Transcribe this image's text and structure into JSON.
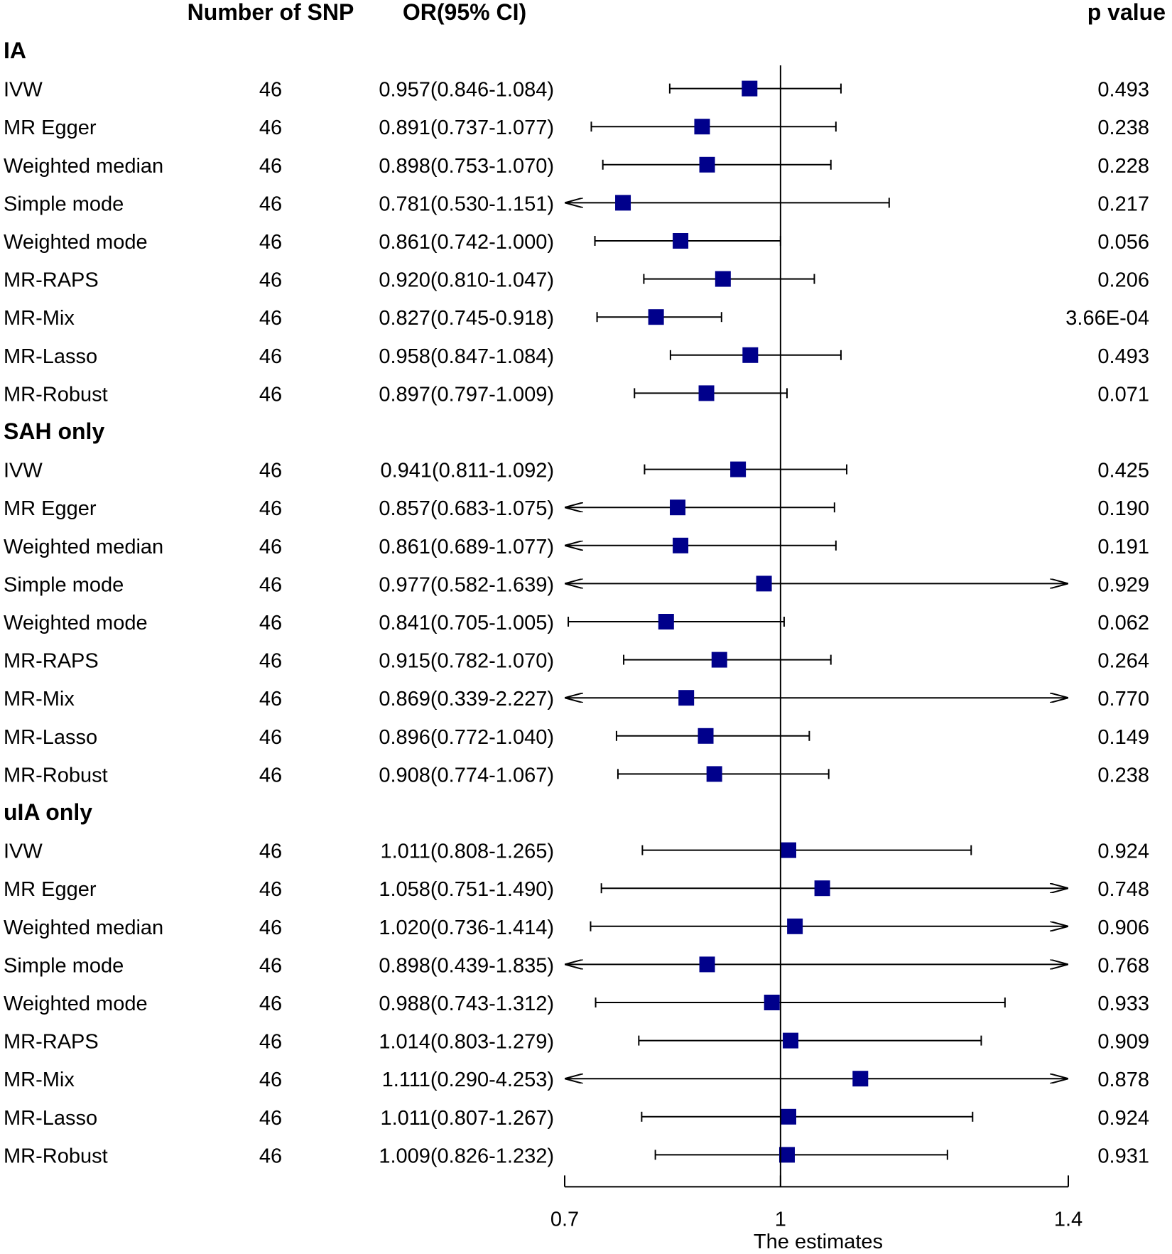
{
  "chart_data": {
    "type": "forest",
    "headers": {
      "snp": "Number of SNP",
      "or": "OR(95% CI)",
      "p": "p value"
    },
    "xlabel": "The estimates",
    "xlim": [
      0.7,
      1.4
    ],
    "ticks": [
      0.7,
      1,
      1.4
    ],
    "tick_labels": [
      "0.7",
      "1",
      "1.4"
    ],
    "reference_line": 1,
    "colors": {
      "marker": "#00008b",
      "line": "#000000"
    },
    "groups": [
      {
        "name": "IA",
        "rows": [
          {
            "method": "IVW",
            "nsnp": "46",
            "or_text": "0.957(0.846-1.084)",
            "p": "0.493",
            "or": 0.957,
            "lo": 0.846,
            "hi": 1.084
          },
          {
            "method": "MR Egger",
            "nsnp": "46",
            "or_text": "0.891(0.737-1.077)",
            "p": "0.238",
            "or": 0.891,
            "lo": 0.737,
            "hi": 1.077
          },
          {
            "method": "Weighted median",
            "nsnp": "46",
            "or_text": "0.898(0.753-1.070)",
            "p": "0.228",
            "or": 0.898,
            "lo": 0.753,
            "hi": 1.07
          },
          {
            "method": "Simple mode",
            "nsnp": "46",
            "or_text": "0.781(0.530-1.151)",
            "p": "0.217",
            "or": 0.781,
            "lo": 0.53,
            "hi": 1.151
          },
          {
            "method": "Weighted mode",
            "nsnp": "46",
            "or_text": "0.861(0.742-1.000)",
            "p": "0.056",
            "or": 0.861,
            "lo": 0.742,
            "hi": 1.0
          },
          {
            "method": "MR-RAPS",
            "nsnp": "46",
            "or_text": "0.920(0.810-1.047)",
            "p": "0.206",
            "or": 0.92,
            "lo": 0.81,
            "hi": 1.047
          },
          {
            "method": "MR-Mix",
            "nsnp": "46",
            "or_text": "0.827(0.745-0.918)",
            "p": "3.66E-04",
            "or": 0.827,
            "lo": 0.745,
            "hi": 0.918
          },
          {
            "method": "MR-Lasso",
            "nsnp": "46",
            "or_text": "0.958(0.847-1.084)",
            "p": "0.493",
            "or": 0.958,
            "lo": 0.847,
            "hi": 1.084
          },
          {
            "method": "MR-Robust",
            "nsnp": "46",
            "or_text": "0.897(0.797-1.009)",
            "p": "0.071",
            "or": 0.897,
            "lo": 0.797,
            "hi": 1.009
          }
        ]
      },
      {
        "name": "SAH only",
        "rows": [
          {
            "method": "IVW",
            "nsnp": "46",
            "or_text": "0.941(0.811-1.092)",
            "p": "0.425",
            "or": 0.941,
            "lo": 0.811,
            "hi": 1.092
          },
          {
            "method": "MR Egger",
            "nsnp": "46",
            "or_text": "0.857(0.683-1.075)",
            "p": "0.190",
            "or": 0.857,
            "lo": 0.683,
            "hi": 1.075
          },
          {
            "method": "Weighted median",
            "nsnp": "46",
            "or_text": "0.861(0.689-1.077)",
            "p": "0.191",
            "or": 0.861,
            "lo": 0.689,
            "hi": 1.077
          },
          {
            "method": "Simple mode",
            "nsnp": "46",
            "or_text": "0.977(0.582-1.639)",
            "p": "0.929",
            "or": 0.977,
            "lo": 0.582,
            "hi": 1.639
          },
          {
            "method": "Weighted mode",
            "nsnp": "46",
            "or_text": "0.841(0.705-1.005)",
            "p": "0.062",
            "or": 0.841,
            "lo": 0.705,
            "hi": 1.005
          },
          {
            "method": "MR-RAPS",
            "nsnp": "46",
            "or_text": "0.915(0.782-1.070)",
            "p": "0.264",
            "or": 0.915,
            "lo": 0.782,
            "hi": 1.07
          },
          {
            "method": "MR-Mix",
            "nsnp": "46",
            "or_text": "0.869(0.339-2.227)",
            "p": "0.770",
            "or": 0.869,
            "lo": 0.339,
            "hi": 2.227
          },
          {
            "method": "MR-Lasso",
            "nsnp": "46",
            "or_text": "0.896(0.772-1.040)",
            "p": "0.149",
            "or": 0.896,
            "lo": 0.772,
            "hi": 1.04
          },
          {
            "method": "MR-Robust",
            "nsnp": "46",
            "or_text": "0.908(0.774-1.067)",
            "p": "0.238",
            "or": 0.908,
            "lo": 0.774,
            "hi": 1.067
          }
        ]
      },
      {
        "name": "uIA only",
        "rows": [
          {
            "method": "IVW",
            "nsnp": "46",
            "or_text": "1.011(0.808-1.265)",
            "p": "0.924",
            "or": 1.011,
            "lo": 0.808,
            "hi": 1.265
          },
          {
            "method": "MR Egger",
            "nsnp": "46",
            "or_text": "1.058(0.751-1.490)",
            "p": "0.748",
            "or": 1.058,
            "lo": 0.751,
            "hi": 1.49
          },
          {
            "method": "Weighted median",
            "nsnp": "46",
            "or_text": "1.020(0.736-1.414)",
            "p": "0.906",
            "or": 1.02,
            "lo": 0.736,
            "hi": 1.414
          },
          {
            "method": "Simple mode",
            "nsnp": "46",
            "or_text": "0.898(0.439-1.835)",
            "p": "0.768",
            "or": 0.898,
            "lo": 0.439,
            "hi": 1.835
          },
          {
            "method": "Weighted mode",
            "nsnp": "46",
            "or_text": "0.988(0.743-1.312)",
            "p": "0.933",
            "or": 0.988,
            "lo": 0.743,
            "hi": 1.312
          },
          {
            "method": "MR-RAPS",
            "nsnp": "46",
            "or_text": "1.014(0.803-1.279)",
            "p": "0.909",
            "or": 1.014,
            "lo": 0.803,
            "hi": 1.279
          },
          {
            "method": "MR-Mix",
            "nsnp": "46",
            "or_text": "1.111(0.290-4.253)",
            "p": "0.878",
            "or": 1.111,
            "lo": 0.29,
            "hi": 4.253
          },
          {
            "method": "MR-Lasso",
            "nsnp": "46",
            "or_text": "1.011(0.807-1.267)",
            "p": "0.924",
            "or": 1.011,
            "lo": 0.807,
            "hi": 1.267
          },
          {
            "method": "MR-Robust",
            "nsnp": "46",
            "or_text": "1.009(0.826-1.232)",
            "p": "0.931",
            "or": 1.009,
            "lo": 0.826,
            "hi": 1.232
          }
        ]
      }
    ]
  }
}
